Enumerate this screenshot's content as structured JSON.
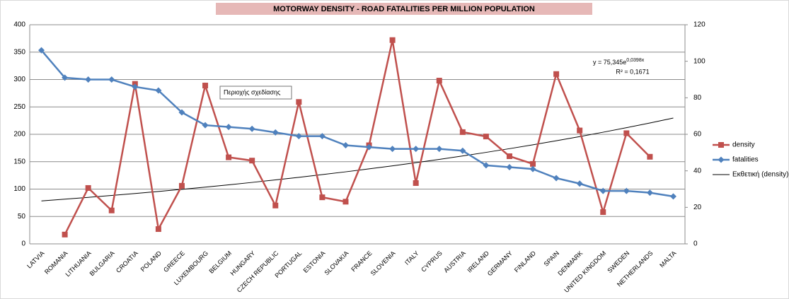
{
  "chart_data": {
    "type": "line",
    "title": "MOTORWAY DENSITY - ROAD FATALITIES PER MILLION POPULATION",
    "categories": [
      "LATVIA",
      "ROMANIA",
      "LITHUANIA",
      "BULGARIA",
      "CROATIA",
      "POLAND",
      "GREECE",
      "LUXEMBOURG",
      "BELGIUM",
      "HUNGARY",
      "CZECH REPUBLIC",
      "PORTUGAL",
      "ESTONIA",
      "SLOVAKIA",
      "FRANCE",
      "SLOVENIA",
      "ITALY",
      "CYPRUS",
      "AUSTRIA",
      "IRELAND",
      "GERMANY",
      "FINLAND",
      "SPAIN",
      "DENMARK",
      "UNITED KINGDOM",
      "SWEDEN",
      "NETHERLANDS",
      "MALTA"
    ],
    "series": [
      {
        "name": "density",
        "color": "#c0504d",
        "marker": "square",
        "values": [
          null,
          17,
          102,
          61,
          292,
          27,
          106,
          289,
          158,
          152,
          70,
          259,
          85,
          77,
          180,
          372,
          111,
          298,
          204,
          196,
          160,
          146,
          310,
          207,
          58,
          202,
          159,
          null
        ]
      },
      {
        "name": "fatalities",
        "color": "#4f81bd",
        "marker": "diamond",
        "axis": "y2",
        "values": [
          106,
          91,
          90,
          90,
          86,
          84,
          72,
          65,
          64,
          63,
          61,
          59,
          59,
          54,
          53,
          52,
          52,
          52,
          51,
          43,
          42,
          41,
          36,
          33,
          29,
          29,
          28,
          26
        ]
      }
    ],
    "trendline": {
      "name": "Εκθετική (density)",
      "color": "#000000",
      "a": 75.345,
      "b": 0.0398,
      "equation": "y = 75,345e",
      "exponent": "0,0398x",
      "r2": "R² = 0,1671"
    },
    "ylim": [
      0,
      400
    ],
    "yticks": [
      0,
      50,
      100,
      150,
      200,
      250,
      300,
      350,
      400
    ],
    "y2lim": [
      0,
      120
    ],
    "y2ticks": [
      0,
      20,
      40,
      60,
      80,
      100,
      120
    ],
    "grid": true,
    "legend": "right",
    "tooltip": "Περιοχής σχεδίασης"
  }
}
